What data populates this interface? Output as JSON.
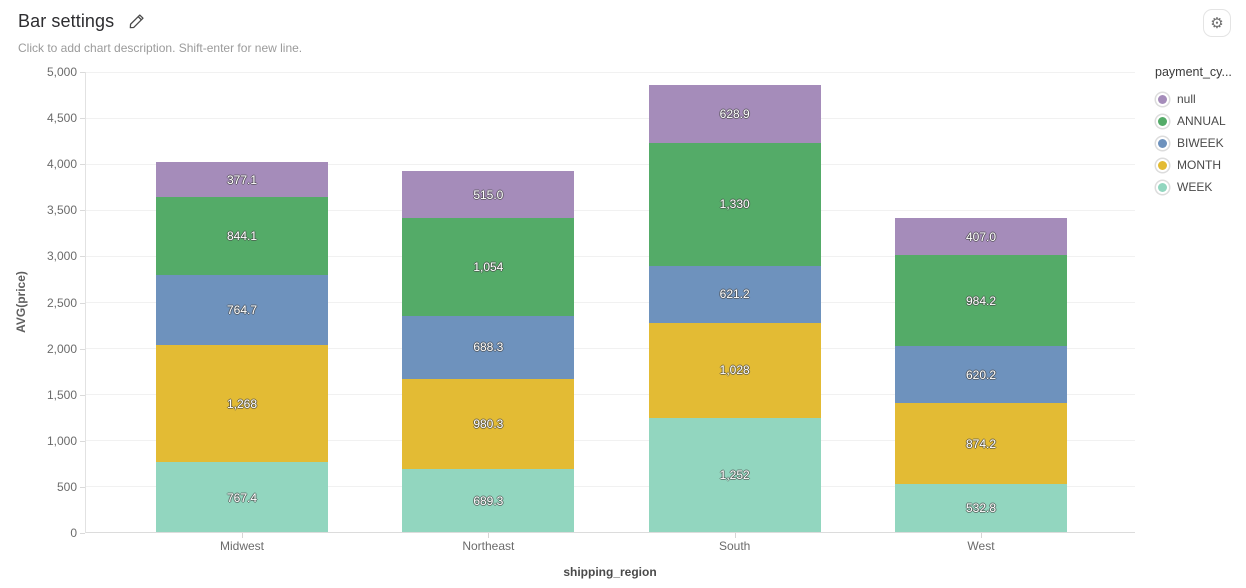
{
  "header": {
    "title": "Bar settings",
    "description": "Click to add chart description. Shift-enter for new line."
  },
  "chart_data": {
    "type": "bar",
    "stacked": true,
    "title": "Bar settings",
    "xlabel": "shipping_region",
    "ylabel": "AVG(price)",
    "categories": [
      "Midwest",
      "Northeast",
      "South",
      "West"
    ],
    "series": [
      {
        "name": "WEEK",
        "color": "#92d6bf",
        "values": [
          767.4,
          689.3,
          1252,
          532.8
        ],
        "labels": [
          "767.4",
          "689.3",
          "1,252",
          "532.8"
        ]
      },
      {
        "name": "MONTH",
        "color": "#e3bb34",
        "values": [
          1268,
          980.3,
          1028,
          874.2
        ],
        "labels": [
          "1,268",
          "980.3",
          "1,028",
          "874.2"
        ]
      },
      {
        "name": "BIWEEK",
        "color": "#6e92bd",
        "values": [
          764.7,
          688.3,
          621.2,
          620.2
        ],
        "labels": [
          "764.7",
          "688.3",
          "621.2",
          "620.2"
        ]
      },
      {
        "name": "ANNUAL",
        "color": "#54ab68",
        "values": [
          844.1,
          1054,
          1330,
          984.2
        ],
        "labels": [
          "844.1",
          "1,054",
          "1,330",
          "984.2"
        ]
      },
      {
        "name": "null",
        "color": "#a58cba",
        "values": [
          377.1,
          515.0,
          628.9,
          407.0
        ],
        "labels": [
          "377.1",
          "515.0",
          "628.9",
          "407.0"
        ]
      }
    ],
    "legend": {
      "title": "payment_cy...",
      "position": "right",
      "items": [
        "null",
        "ANNUAL",
        "BIWEEK",
        "MONTH",
        "WEEK"
      ]
    },
    "ylim": [
      0,
      5000
    ],
    "ytick_step": 500,
    "yticks": [
      0,
      500,
      1000,
      1500,
      2000,
      2500,
      3000,
      3500,
      4000,
      4500,
      5000
    ],
    "ytick_labels": [
      "0",
      "500",
      "1,000",
      "1,500",
      "2,000",
      "2,500",
      "3,000",
      "3,500",
      "4,000",
      "4,500",
      "5,000"
    ],
    "grid": true
  },
  "icons": {
    "edit": "pencil-icon",
    "settings": "gear-icon",
    "gear_glyph": "⚙"
  },
  "colors": {
    "background": "#ffffff",
    "gridline": "#f1f1f1",
    "axis_line": "#dcdcdc",
    "tick_text": "#6b6b6b",
    "bar_label_text": "#ffffff"
  }
}
